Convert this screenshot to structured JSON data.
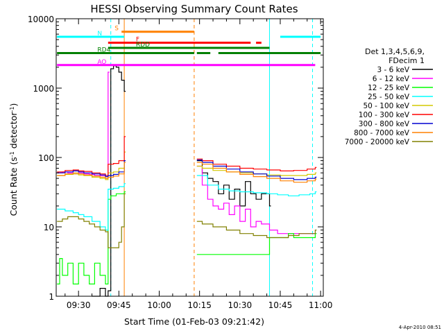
{
  "chart_data": {
    "type": "line",
    "title": "HESSI Observing Summary Count Rates",
    "xlabel": "Start Time (01-Feb-03 09:21:42)",
    "ylabel": "Count Rate (s^-1 detector^-1)",
    "ylabel_main": "Count Rate (s",
    "ylabel_sup1": "-1",
    "ylabel_mid": " detector",
    "ylabel_sup2": "-1",
    "ylabel_end": ")",
    "date_stamp": "4-Apr-2010 08:51",
    "y_scale": "log",
    "ylim": [
      1,
      10000
    ],
    "xlim": [
      "09:21:42",
      "11:01:00"
    ],
    "x_ticks": [
      "09:30",
      "09:45",
      "10:00",
      "10:15",
      "10:30",
      "10:45",
      "11:00"
    ],
    "x_tick_minutes": [
      570,
      585,
      600,
      615,
      630,
      645,
      660
    ],
    "y_ticks": [
      {
        "value": 1,
        "label": "1"
      },
      {
        "value": 10,
        "label": "10"
      },
      {
        "value": 100,
        "label": "100"
      },
      {
        "value": 1000,
        "label": "1000"
      },
      {
        "value": 10000,
        "label": "10000"
      }
    ],
    "legend": {
      "position": "right",
      "header": [
        "Det 1,3,4,5,6,9,",
        "FDecim 1"
      ],
      "entries": [
        {
          "label": "3 - 6 keV",
          "color": "#000000"
        },
        {
          "label": "6 - 12 keV",
          "color": "#ff00ff"
        },
        {
          "label": "12 - 25 keV",
          "color": "#00ff00"
        },
        {
          "label": "25 - 50 keV",
          "color": "#00ffff"
        },
        {
          "label": "50 - 100 keV",
          "color": "#d4c800"
        },
        {
          "label": "100 - 300 keV",
          "color": "#ff0000"
        },
        {
          "label": "300 - 800 keV",
          "color": "#0000d0"
        },
        {
          "label": "800 - 7000 keV",
          "color": "#ff8000"
        },
        {
          "label": "7000 - 20000 keV",
          "color": "#808000"
        }
      ]
    },
    "flag_bars": [
      {
        "label": "S",
        "color": "#ff8000",
        "y": 6500,
        "segments": [
          [
            "09:46",
            "10:13"
          ]
        ]
      },
      {
        "label": "N",
        "color": "#00ffff",
        "y": 5500,
        "segments": [
          [
            "09:22",
            "09:47"
          ],
          [
            "10:45",
            "11:00"
          ]
        ]
      },
      {
        "label": "F",
        "color": "#ff0000",
        "y": 4500,
        "segments": [
          [
            "09:41",
            "10:34"
          ],
          [
            "10:36",
            "10:38"
          ]
        ]
      },
      {
        "label": "RDD",
        "color": "#008000",
        "y": 3800,
        "segments": [
          [
            "09:41",
            "10:41"
          ]
        ]
      },
      {
        "label": "RD4",
        "color": "#008000",
        "y": 3200,
        "segments": [
          [
            "09:22",
            "10:13"
          ],
          [
            "10:14",
            "10:19"
          ],
          [
            "10:22",
            "11:00"
          ]
        ]
      },
      {
        "label": "AO",
        "color": "#ff00ff",
        "y": 2150,
        "segments": [
          [
            "09:22",
            "10:58"
          ]
        ]
      }
    ],
    "vertical_markers": [
      {
        "time": "09:42",
        "color": "#00ffff",
        "style": "dashed"
      },
      {
        "time": "09:47",
        "color": "#ff8000",
        "style": "solid"
      },
      {
        "time": "10:13",
        "color": "#ff8000",
        "style": "dashed"
      },
      {
        "time": "10:41",
        "color": "#00ffff",
        "style": "solid"
      },
      {
        "time": "10:57",
        "color": "#00ffff",
        "style": "dashed"
      }
    ],
    "series": [
      {
        "name": "3 - 6 keV",
        "color": "#000000",
        "x": [
          "09:35",
          "09:38",
          "09:40",
          "09:41",
          "09:42",
          "09:43",
          "09:44",
          "09:45",
          "09:46",
          "09:47",
          "10:14",
          "10:16",
          "10:18",
          "10:20",
          "10:22",
          "10:24",
          "10:26",
          "10:28",
          "10:30",
          "10:32",
          "10:34",
          "10:36",
          "10:38",
          "10:41"
        ],
        "y": [
          1,
          1.3,
          1,
          1.2,
          1900,
          2100,
          2000,
          1700,
          1300,
          900,
          90,
          60,
          50,
          45,
          30,
          40,
          25,
          35,
          20,
          45,
          30,
          25,
          30,
          20
        ]
      },
      {
        "name": "6 - 12 keV",
        "color": "#ff00ff",
        "x": [
          "09:22",
          "09:24",
          "09:26",
          "09:28",
          "09:30",
          "09:32",
          "09:34",
          "09:36",
          "09:38",
          "09:40",
          "09:41",
          "10:14",
          "10:16",
          "10:18",
          "10:20",
          "10:22",
          "10:24",
          "10:26",
          "10:28",
          "10:30",
          "10:32",
          "10:34",
          "10:36",
          "10:38",
          "10:41",
          "10:44",
          "10:46",
          "10:48",
          "10:50",
          "10:52",
          "10:54",
          "10:56",
          "10:58"
        ],
        "y": [
          60,
          62,
          60,
          58,
          60,
          58,
          57,
          55,
          55,
          50,
          1700,
          75,
          40,
          25,
          20,
          18,
          22,
          15,
          20,
          12,
          18,
          10,
          12,
          11,
          9,
          8,
          8,
          8,
          8,
          8,
          8,
          8,
          8
        ]
      },
      {
        "name": "12 - 25 keV",
        "color": "#00ff00",
        "x": [
          "09:22",
          "09:23",
          "09:24",
          "09:26",
          "09:28",
          "09:30",
          "09:32",
          "09:34",
          "09:36",
          "09:38",
          "09:40",
          "09:41",
          "09:42",
          "09:44",
          "09:46",
          "09:47",
          "10:14",
          "10:16",
          "10:18",
          "10:20",
          "10:22",
          "10:24",
          "10:26",
          "10:28",
          "10:30",
          "10:32",
          "10:34",
          "10:36",
          "10:38",
          "10:41",
          "10:44",
          "10:46",
          "10:48",
          "10:50",
          "10:52",
          "10:54",
          "10:56",
          "10:58"
        ],
        "y": [
          1.5,
          3.5,
          2,
          3,
          1.5,
          3,
          2,
          1.5,
          3,
          2,
          1.5,
          25,
          28,
          30,
          30,
          32,
          4,
          4,
          4,
          4,
          4,
          4,
          4,
          4,
          4,
          4,
          4,
          4,
          4,
          7,
          7,
          7,
          8,
          7,
          7,
          7,
          7,
          8
        ]
      },
      {
        "name": "25 - 50 keV",
        "color": "#00ffff",
        "x": [
          "09:22",
          "09:25",
          "09:28",
          "09:30",
          "09:32",
          "09:35",
          "09:38",
          "09:40",
          "09:41",
          "09:43",
          "09:45",
          "09:47",
          "10:14",
          "10:18",
          "10:22",
          "10:26",
          "10:30",
          "10:35",
          "10:40",
          "10:44",
          "10:48",
          "10:52",
          "10:56",
          "10:58"
        ],
        "y": [
          18,
          17,
          16,
          15,
          14,
          12,
          10,
          9,
          35,
          36,
          38,
          42,
          55,
          40,
          35,
          33,
          32,
          31,
          30,
          29,
          28,
          29,
          30,
          32
        ]
      },
      {
        "name": "50 - 100 keV",
        "color": "#d4c800",
        "x": [
          "09:22",
          "09:25",
          "09:28",
          "09:30",
          "09:32",
          "09:35",
          "09:38",
          "09:40",
          "09:41",
          "09:43",
          "09:45",
          "09:47",
          "10:14",
          "10:16",
          "10:20",
          "10:25",
          "10:30",
          "10:35",
          "10:40",
          "10:45",
          "10:50",
          "10:55",
          "10:58"
        ],
        "y": [
          55,
          57,
          58,
          56,
          55,
          52,
          50,
          48,
          60,
          62,
          70,
          120,
          75,
          70,
          65,
          62,
          60,
          58,
          56,
          55,
          55,
          57,
          60
        ]
      },
      {
        "name": "100 - 300 keV",
        "color": "#ff0000",
        "x": [
          "09:22",
          "09:25",
          "09:28",
          "09:30",
          "09:32",
          "09:35",
          "09:38",
          "09:40",
          "09:41",
          "09:43",
          "09:45",
          "09:47",
          "10:14",
          "10:16",
          "10:20",
          "10:25",
          "10:30",
          "10:35",
          "10:40",
          "10:45",
          "10:50",
          "10:55",
          "10:58"
        ],
        "y": [
          62,
          65,
          66,
          64,
          63,
          60,
          58,
          55,
          80,
          82,
          90,
          200,
          95,
          90,
          80,
          75,
          70,
          68,
          66,
          64,
          65,
          68,
          72
        ]
      },
      {
        "name": "300 - 800 keV",
        "color": "#0000d0",
        "x": [
          "09:22",
          "09:25",
          "09:28",
          "09:30",
          "09:32",
          "09:35",
          "09:38",
          "09:40",
          "09:41",
          "09:43",
          "09:45",
          "09:47",
          "10:14",
          "10:16",
          "10:20",
          "10:25",
          "10:30",
          "10:35",
          "10:40",
          "10:45",
          "10:50",
          "10:55",
          "10:58"
        ],
        "y": [
          60,
          62,
          64,
          62,
          60,
          58,
          56,
          53,
          55,
          57,
          62,
          90,
          92,
          85,
          75,
          68,
          62,
          58,
          54,
          50,
          48,
          50,
          52
        ]
      },
      {
        "name": "800 - 7000 keV",
        "color": "#ff8000",
        "x": [
          "09:22",
          "09:25",
          "09:28",
          "09:30",
          "09:32",
          "09:35",
          "09:38",
          "09:40",
          "09:41",
          "09:43",
          "09:45",
          "09:47",
          "10:14",
          "10:16",
          "10:20",
          "10:25",
          "10:30",
          "10:35",
          "10:40",
          "10:45",
          "10:50",
          "10:55",
          "10:58"
        ],
        "y": [
          55,
          58,
          60,
          58,
          56,
          54,
          52,
          50,
          52,
          54,
          58,
          85,
          85,
          80,
          70,
          62,
          57,
          53,
          50,
          46,
          44,
          46,
          49
        ]
      },
      {
        "name": "7000 - 20000 keV",
        "color": "#808000",
        "x": [
          "09:22",
          "09:24",
          "09:26",
          "09:28",
          "09:30",
          "09:32",
          "09:34",
          "09:36",
          "09:38",
          "09:40",
          "09:41",
          "09:43",
          "09:45",
          "09:46",
          "09:47",
          "10:14",
          "10:16",
          "10:20",
          "10:25",
          "10:30",
          "10:35",
          "10:40",
          "10:44",
          "10:48",
          "10:52",
          "10:56",
          "10:58"
        ],
        "y": [
          12,
          13,
          14,
          14,
          13,
          12,
          11,
          10,
          9,
          8.5,
          5,
          5,
          6,
          10,
          30,
          12,
          11,
          10,
          9,
          8,
          7.5,
          7,
          7,
          7.5,
          8,
          8,
          9
        ]
      }
    ]
  }
}
